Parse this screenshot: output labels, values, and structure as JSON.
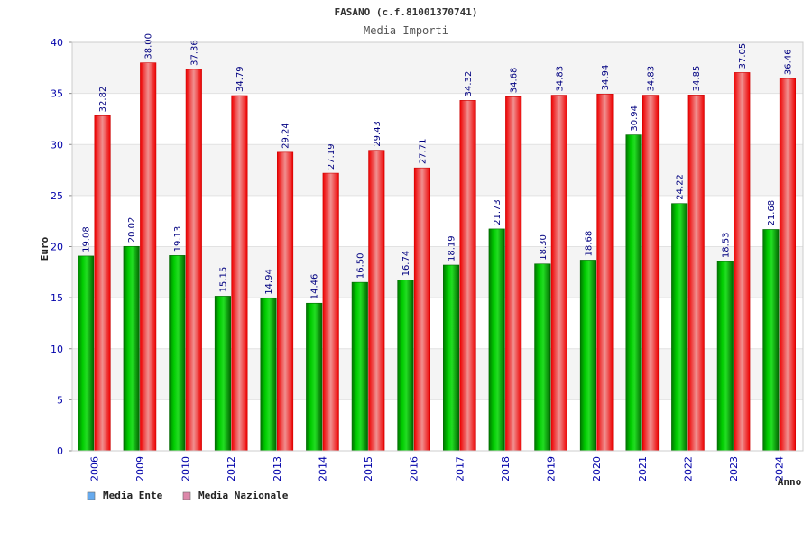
{
  "chart_data": {
    "type": "bar",
    "title": "FASANO (c.f.81001370741)",
    "subtitle": "Media Importi",
    "xlabel": "Anno",
    "ylabel": "Euro",
    "ylim": [
      0,
      40
    ],
    "yticks": [
      0,
      5,
      10,
      15,
      20,
      25,
      30,
      35,
      40
    ],
    "grid": true,
    "legend_position": "bottom-left",
    "categories": [
      "2006",
      "2009",
      "2010",
      "2012",
      "2013",
      "2014",
      "2015",
      "2016",
      "2017",
      "2018",
      "2019",
      "2020",
      "2021",
      "2022",
      "2023",
      "2024"
    ],
    "series": [
      {
        "name": "Media Ente",
        "color": "#00aa00",
        "legend_color": "#66aaee",
        "values": [
          19.08,
          20.02,
          19.13,
          15.15,
          14.94,
          14.46,
          16.5,
          16.74,
          18.19,
          21.73,
          18.3,
          18.68,
          30.94,
          24.22,
          18.53,
          21.68
        ],
        "labels": [
          "19.08",
          "20.02",
          "19.13",
          "15.15",
          "14.94",
          "14.46",
          "16.50",
          "16.74",
          "18.19",
          "21.73",
          "18.30",
          "18.68",
          "30.94",
          "24.22",
          "18.53",
          "21.68"
        ]
      },
      {
        "name": "Media Nazionale",
        "color": "#ee1111",
        "legend_color": "#dd88aa",
        "values": [
          32.82,
          38.0,
          37.36,
          34.79,
          29.24,
          27.19,
          29.43,
          27.71,
          34.32,
          34.68,
          34.83,
          34.94,
          34.83,
          34.85,
          37.05,
          36.46
        ],
        "labels": [
          "32.82",
          "38.00",
          "37.36",
          "34.79",
          "29.24",
          "27.19",
          "29.43",
          "27.71",
          "34.32",
          "34.68",
          "34.83",
          "34.94",
          "34.83",
          "34.85",
          "37.05",
          "36.46"
        ]
      }
    ]
  }
}
